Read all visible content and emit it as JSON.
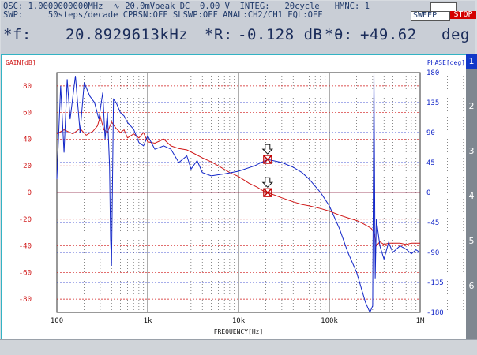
{
  "header": {
    "line1": "OSC: 1.0000000000MHz  ∿ 20.0mVpeak DC  0.00 V  INTEG:   20cycle   HMNC: 1",
    "line2": "SWP:     50steps/decade CPRSN:OFF SLSWP:OFF ANAL:CH2/CH1 EQL:OFF",
    "sweep_label": "SWEEP",
    "stop_label": "STOP",
    "freq_label": "*f:",
    "freq_value": "20.8929613kHz",
    "r_label": "*R:",
    "r_value": "-0.128 dB",
    "theta_label": "*θ:",
    "theta_value": "+49.62",
    "theta_unit": "deg"
  },
  "sidebar": {
    "tabs": [
      "1",
      "2",
      "3",
      "4",
      "5",
      "6"
    ],
    "active": "1"
  },
  "colors": {
    "gain": "#d01818",
    "phase": "#1226c8",
    "accent": "#33b3c4"
  },
  "chart_data": {
    "type": "line",
    "xlabel": "FREQUENCY[Hz]",
    "ylabel_left": "GAIN[dB]",
    "ylabel_right": "PHASE[deg]",
    "x_scale": "log",
    "xlim": [
      100,
      1000000
    ],
    "ylim_left": [
      -90,
      90
    ],
    "ylim_right": [
      -180,
      180
    ],
    "x_ticks": [
      {
        "value": 100,
        "label": "100"
      },
      {
        "value": 1000,
        "label": "1k"
      },
      {
        "value": 10000,
        "label": "10k"
      },
      {
        "value": 100000,
        "label": "100k"
      },
      {
        "value": 1000000,
        "label": "1M"
      }
    ],
    "y_ticks_left": [
      80,
      60,
      40,
      20,
      0,
      -20,
      -40,
      -60,
      -80
    ],
    "y_ticks_right": [
      180,
      135,
      90,
      45,
      0,
      -45,
      -90,
      -135,
      -180
    ],
    "marker": {
      "x": 20892.96,
      "gain_db": -0.128,
      "phase_deg": 49.62
    },
    "series": [
      {
        "axis": "left",
        "x": [
          100,
          120,
          150,
          180,
          210,
          250,
          280,
          300,
          330,
          360,
          400,
          450,
          500,
          550,
          600,
          700,
          800,
          900,
          1000,
          1200,
          1500,
          1800,
          2200,
          2700,
          3300,
          4000,
          5000,
          6000,
          8000,
          10000,
          13000,
          16000,
          20000,
          21000,
          25000,
          30000,
          40000,
          50000,
          60000,
          80000,
          100000,
          130000,
          160000,
          200000,
          230000,
          260000,
          290000,
          310000,
          330000,
          360000,
          400000,
          450000,
          500000,
          600000,
          700000,
          800000,
          1000000
        ],
        "y": [
          44,
          47,
          44,
          48,
          43,
          46,
          50,
          57,
          47,
          45,
          53,
          48,
          45,
          47,
          41,
          44,
          41,
          45,
          38,
          37,
          40,
          35,
          33,
          32,
          29,
          26,
          23,
          20,
          15,
          12,
          7,
          4,
          0,
          -0.13,
          -2,
          -4,
          -7,
          -9,
          -10,
          -12,
          -14,
          -17,
          -19,
          -21,
          -23,
          -25,
          -27,
          -30,
          -40,
          -37,
          -39,
          -38,
          -38,
          -38,
          -39,
          -38,
          -38
        ]
      },
      {
        "axis": "right",
        "x": [
          100,
          110,
          120,
          130,
          140,
          160,
          180,
          200,
          230,
          260,
          290,
          320,
          340,
          360,
          380,
          390,
          400,
          420,
          450,
          500,
          550,
          600,
          700,
          800,
          900,
          1000,
          1200,
          1500,
          1800,
          2200,
          2700,
          3000,
          3500,
          4000,
          5000,
          7000,
          10000,
          15000,
          20892,
          30000,
          40000,
          50000,
          60000,
          80000,
          100000,
          130000,
          160000,
          200000,
          250000,
          280000,
          300000,
          310000,
          320000,
          330000,
          360000,
          400000,
          450000,
          500000,
          600000,
          700000,
          800000,
          900000,
          1000000
        ],
        "y": [
          20,
          160,
          60,
          170,
          110,
          175,
          90,
          165,
          145,
          135,
          110,
          150,
          80,
          120,
          40,
          -70,
          -110,
          140,
          135,
          120,
          115,
          105,
          95,
          75,
          70,
          85,
          65,
          70,
          65,
          45,
          55,
          35,
          48,
          30,
          25,
          28,
          32,
          40,
          49.6,
          45,
          38,
          30,
          20,
          0,
          -20,
          -55,
          -90,
          -120,
          -165,
          -180,
          -170,
          180,
          -130,
          -40,
          -80,
          -100,
          -75,
          -90,
          -80,
          -85,
          -92,
          -86,
          -90
        ]
      }
    ]
  }
}
